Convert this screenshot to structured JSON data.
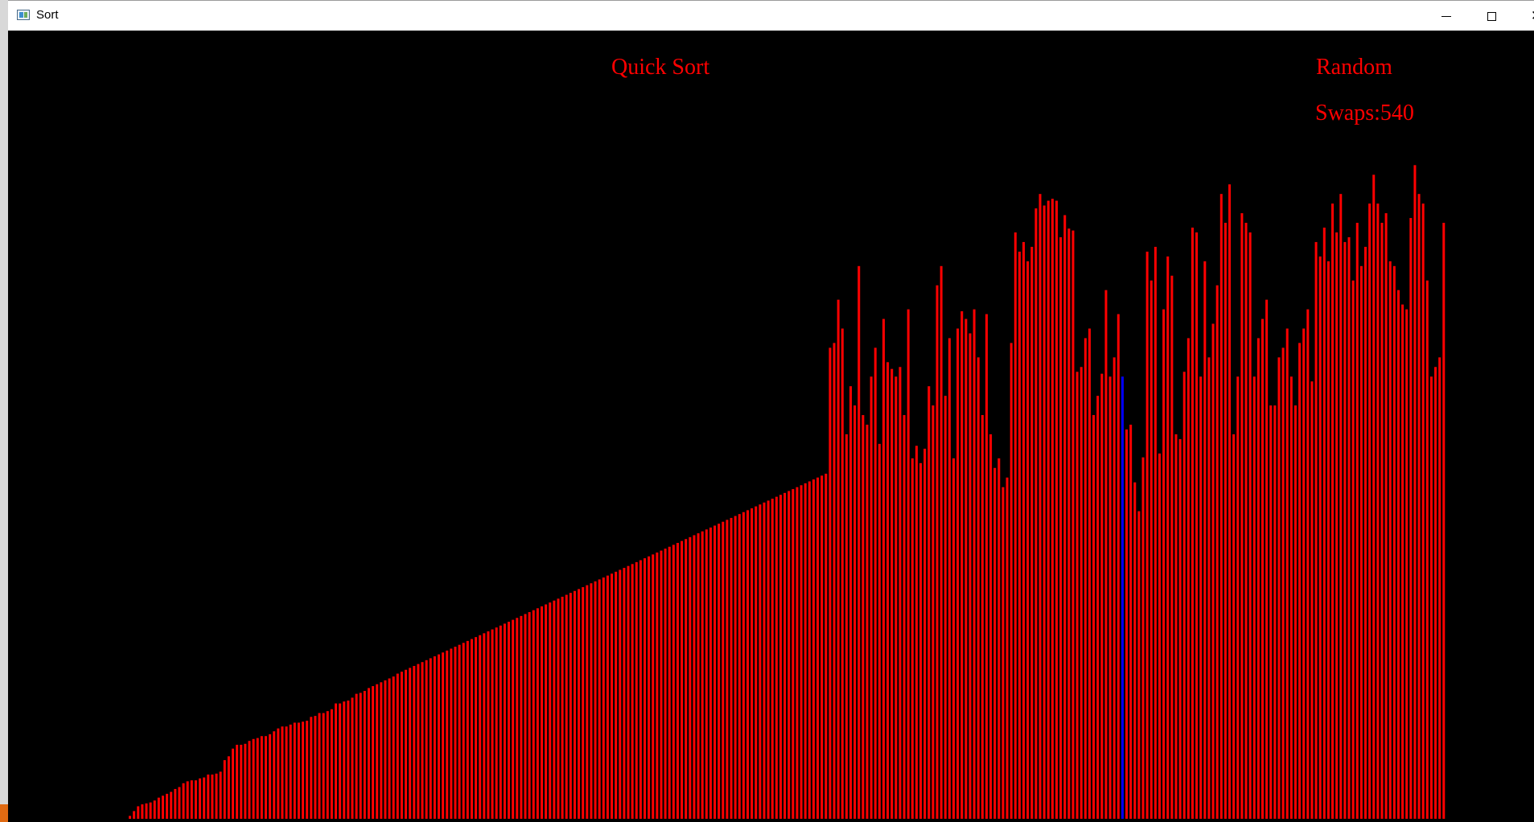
{
  "window": {
    "title": "Sort"
  },
  "controls": {
    "minimize": "minimize",
    "maximize": "maximize",
    "close": "✕"
  },
  "overlay": {
    "algorithm": "Quick Sort",
    "mode": "Random",
    "swaps_text": "Swaps:540"
  },
  "colors": {
    "bar": "#ff0000",
    "active_bar": "#0000ff",
    "background": "#000000"
  },
  "chart_data": {
    "type": "bar",
    "title": "Quick Sort",
    "ylim": [
      0,
      820
    ],
    "active_index": 241,
    "values": [
      3,
      8,
      13,
      15,
      16,
      17,
      19,
      22,
      24,
      26,
      28,
      31,
      33,
      37,
      39,
      40,
      40,
      42,
      43,
      46,
      46,
      47,
      49,
      61,
      65,
      73,
      77,
      77,
      78,
      81,
      83,
      84,
      86,
      86,
      88,
      91,
      94,
      96,
      96,
      98,
      100,
      100,
      101,
      102,
      106,
      107,
      110,
      110,
      112,
      114,
      120,
      120,
      122,
      123,
      126,
      130,
      131,
      133,
      136,
      138,
      140,
      142,
      144,
      146,
      148,
      151,
      153,
      155,
      157,
      159,
      161,
      163,
      165,
      167,
      169,
      171,
      173,
      175,
      177,
      179,
      181,
      183,
      185,
      187,
      189,
      191,
      193,
      195,
      197,
      199,
      201,
      203,
      205,
      207,
      209,
      211,
      213,
      215,
      217,
      219,
      221,
      223,
      225,
      227,
      229,
      231,
      233,
      235,
      237,
      239,
      241,
      243,
      245,
      247,
      249,
      251,
      253,
      255,
      257,
      259,
      261,
      263,
      265,
      267,
      269,
      271,
      273,
      275,
      277,
      279,
      281,
      283,
      285,
      287,
      289,
      291,
      293,
      295,
      297,
      299,
      301,
      303,
      305,
      307,
      309,
      311,
      313,
      315,
      317,
      319,
      321,
      323,
      325,
      327,
      329,
      331,
      333,
      335,
      337,
      339,
      341,
      343,
      345,
      347,
      349,
      351,
      353,
      355,
      357,
      359,
      490,
      495,
      540,
      510,
      400,
      450,
      430,
      575,
      420,
      410,
      460,
      490,
      390,
      520,
      475,
      468,
      460,
      470,
      420,
      530,
      375,
      388,
      370,
      385,
      450,
      430,
      555,
      575,
      440,
      500,
      375,
      510,
      528,
      520,
      505,
      530,
      480,
      420,
      525,
      400,
      365,
      375,
      345,
      355,
      495,
      610,
      590,
      600,
      580,
      595,
      635,
      650,
      638,
      643,
      645,
      643,
      605,
      628,
      614,
      612,
      465,
      470,
      500,
      510,
      420,
      440,
      463,
      550,
      460,
      480,
      525,
      460,
      405,
      410,
      350,
      320,
      376,
      590,
      560,
      595,
      380,
      530,
      585,
      565,
      400,
      395,
      465,
      500,
      615,
      610,
      460,
      580,
      480,
      515,
      555,
      650,
      620,
      660,
      400,
      460,
      630,
      620,
      610,
      460,
      500,
      520,
      540,
      430,
      430,
      480,
      490,
      510,
      460,
      430,
      495,
      510,
      530,
      455,
      600,
      585,
      615,
      580,
      640,
      610,
      650,
      600,
      605,
      560,
      620,
      575,
      595,
      640,
      670,
      640,
      620,
      630,
      580,
      575,
      550,
      535,
      530,
      625,
      680,
      650,
      640,
      560,
      460,
      470,
      480,
      620
    ]
  }
}
